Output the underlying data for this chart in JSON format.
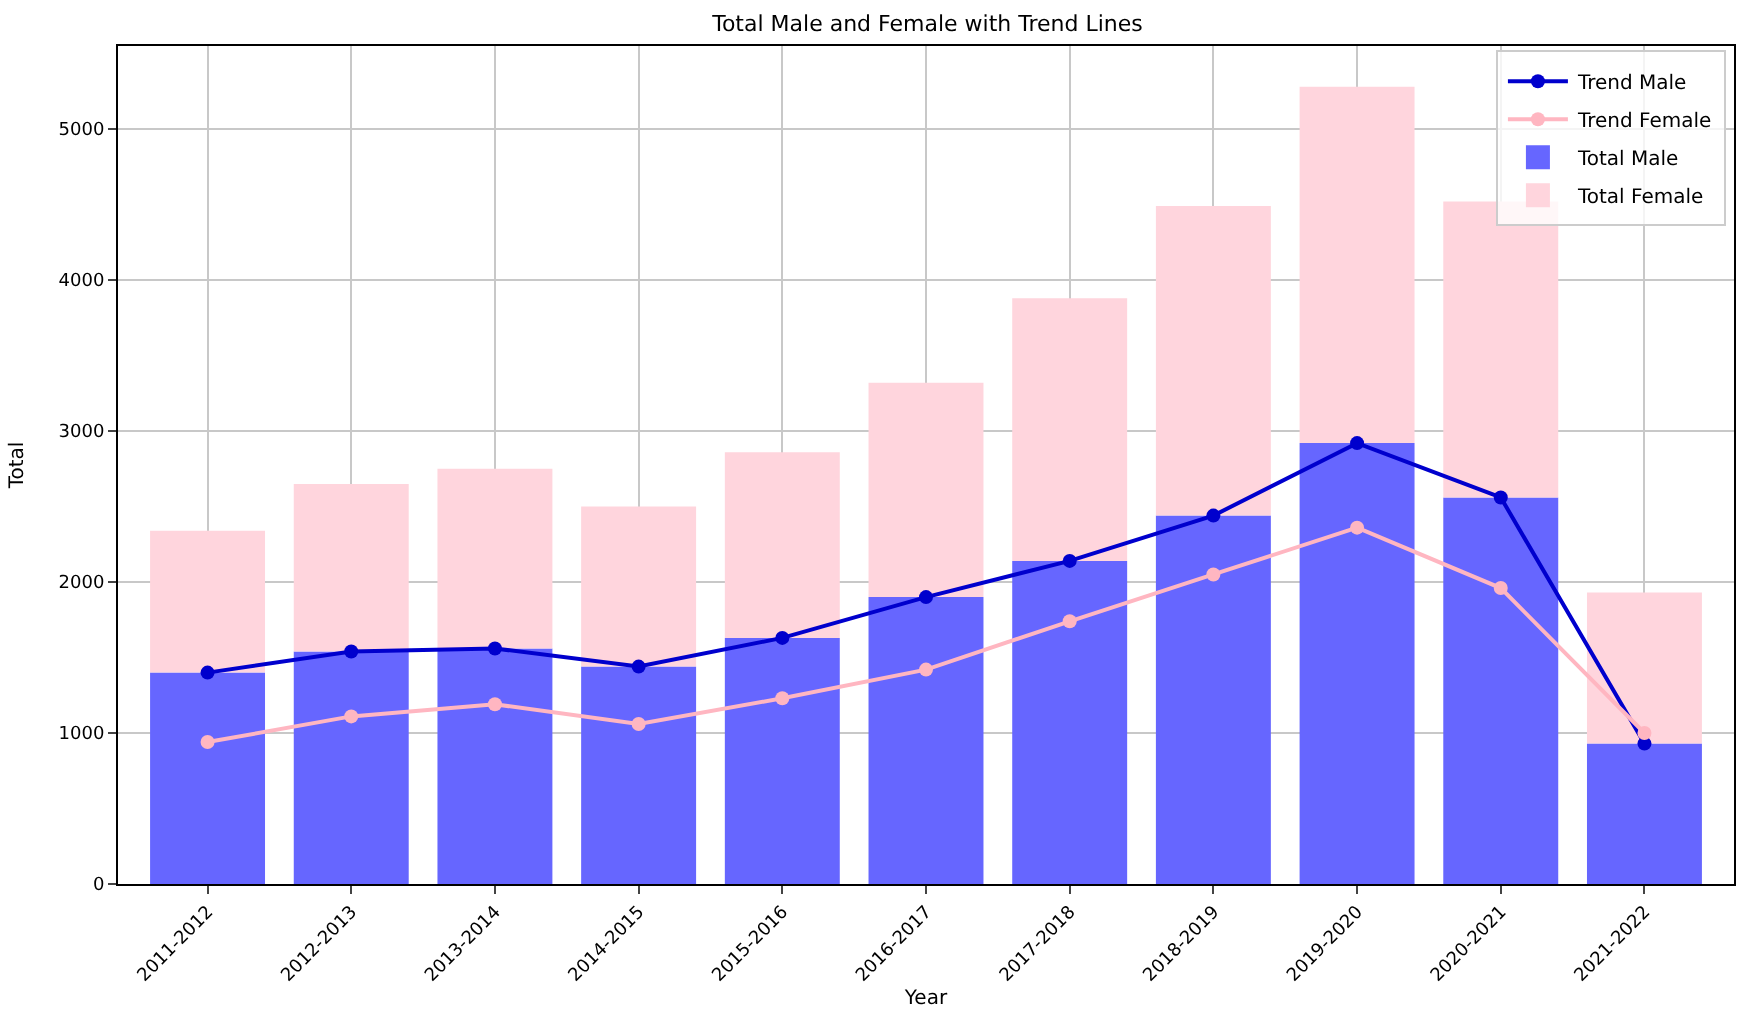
{
  "chart_data": {
    "type": "bar",
    "title": "Total Male and Female with Trend Lines",
    "xlabel": "Year",
    "ylabel": "Total",
    "categories": [
      "2011-2012",
      "2012-2013",
      "2013-2014",
      "2014-2015",
      "2015-2016",
      "2016-2017",
      "2017-2018",
      "2018-2019",
      "2019-2020",
      "2020-2021",
      "2021-2022"
    ],
    "series": [
      {
        "name": "Trend Male",
        "type": "line",
        "marker": "circle",
        "color": "#0000cd",
        "values": [
          1400,
          1540,
          1560,
          1440,
          1630,
          1900,
          2140,
          2440,
          2920,
          2560,
          930
        ]
      },
      {
        "name": "Trend Female",
        "type": "line",
        "marker": "circle",
        "color": "#ffb6c1",
        "values": [
          940,
          1110,
          1190,
          1060,
          1230,
          1420,
          1740,
          2050,
          2360,
          1960,
          1000
        ]
      },
      {
        "name": "Total Male",
        "color": "#6666ff",
        "values": [
          1400,
          1540,
          1560,
          1440,
          1630,
          1900,
          2140,
          2440,
          2920,
          2560,
          930
        ]
      },
      {
        "name": "Total Female",
        "color": "#ffd5dd",
        "values": [
          940,
          1110,
          1190,
          1060,
          1230,
          1420,
          1740,
          2050,
          2360,
          1960,
          1000
        ]
      }
    ],
    "stacked": true,
    "ylim": [
      0,
      5550
    ],
    "yticks": [
      0,
      1000,
      2000,
      3000,
      4000,
      5000
    ],
    "grid": true,
    "legend": "top right"
  }
}
